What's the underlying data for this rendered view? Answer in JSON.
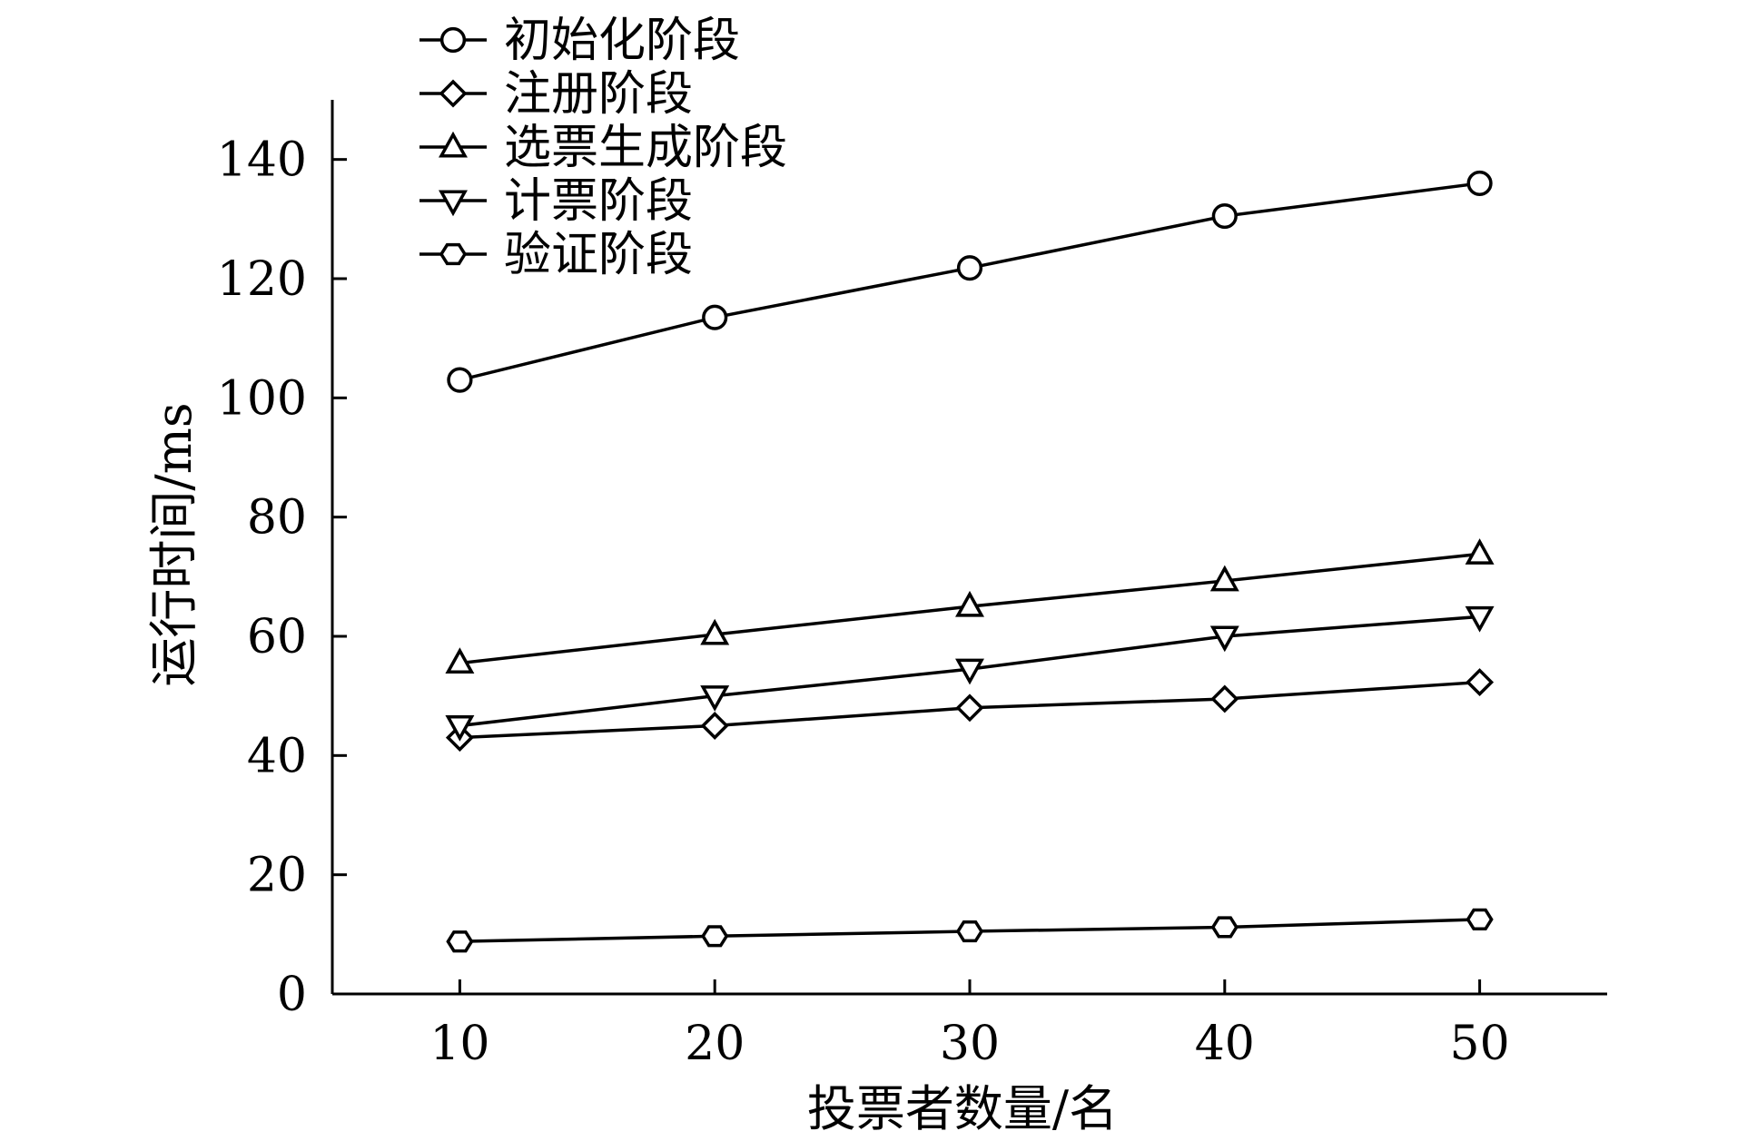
{
  "chart_data": {
    "type": "line",
    "title": "",
    "xlabel": "投票者数量/名",
    "ylabel": "运行时间/ms",
    "x": [
      10,
      20,
      30,
      40,
      50
    ],
    "xlim": [
      5,
      55
    ],
    "ylim": [
      0,
      150
    ],
    "xticks": [
      "10",
      "20",
      "30",
      "40",
      "50"
    ],
    "yticks": [
      "0",
      "20",
      "40",
      "60",
      "80",
      "100",
      "120",
      "140"
    ],
    "grid": false,
    "legend_position": "top-left",
    "series": [
      {
        "name": "初始化阶段",
        "marker": "circle",
        "values": [
          103,
          113.5,
          121.8,
          130.5,
          136
        ]
      },
      {
        "name": "注册阶段",
        "marker": "diamond",
        "values": [
          43,
          45,
          48,
          49.5,
          52.3
        ]
      },
      {
        "name": "选票生成阶段",
        "marker": "triangle-up",
        "values": [
          55.5,
          60.3,
          65,
          69.3,
          73.8
        ]
      },
      {
        "name": "计票阶段",
        "marker": "triangle-down",
        "values": [
          45,
          50,
          54.5,
          60,
          63.3
        ]
      },
      {
        "name": "验证阶段",
        "marker": "hexagon",
        "values": [
          8.8,
          9.7,
          10.5,
          11.2,
          12.5
        ]
      }
    ],
    "colors": {
      "line": "#000000",
      "marker_fill": "#ffffff"
    }
  }
}
